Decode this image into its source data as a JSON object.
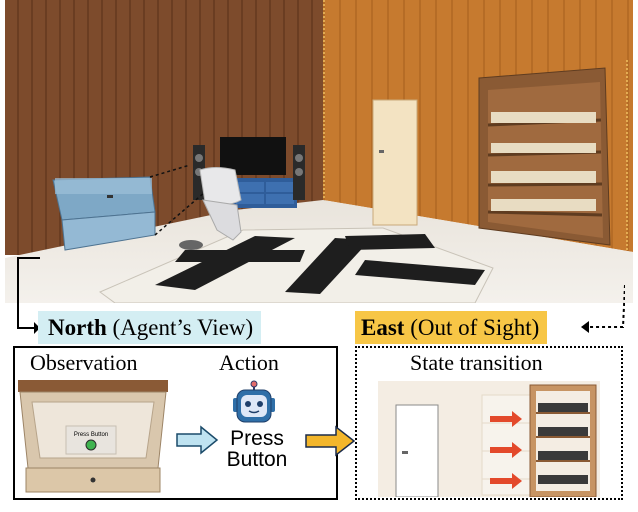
{
  "north_label": {
    "bold": "North",
    "rest": " (Agent’s View)"
  },
  "east_label": {
    "bold": "East",
    "rest": " (Out of Sight)"
  },
  "left_panel": {
    "observation_title": "Observation",
    "action_title": "Action",
    "drawer_button_text": "Press Button",
    "action_text_line1": "Press",
    "action_text_line2": "Button",
    "action_icon": "robot-icon"
  },
  "right_panel": {
    "title": "State transition"
  },
  "colors": {
    "north_bg": "#d4eef3",
    "east_bg": "#f7c646",
    "arrow_blue": "#bfe3f1",
    "arrow_gold": "#f3b62b",
    "wall_wood": "#7a4a2e",
    "robot_blue": "#2f6fa8",
    "red_arrow": "#e3492b"
  }
}
